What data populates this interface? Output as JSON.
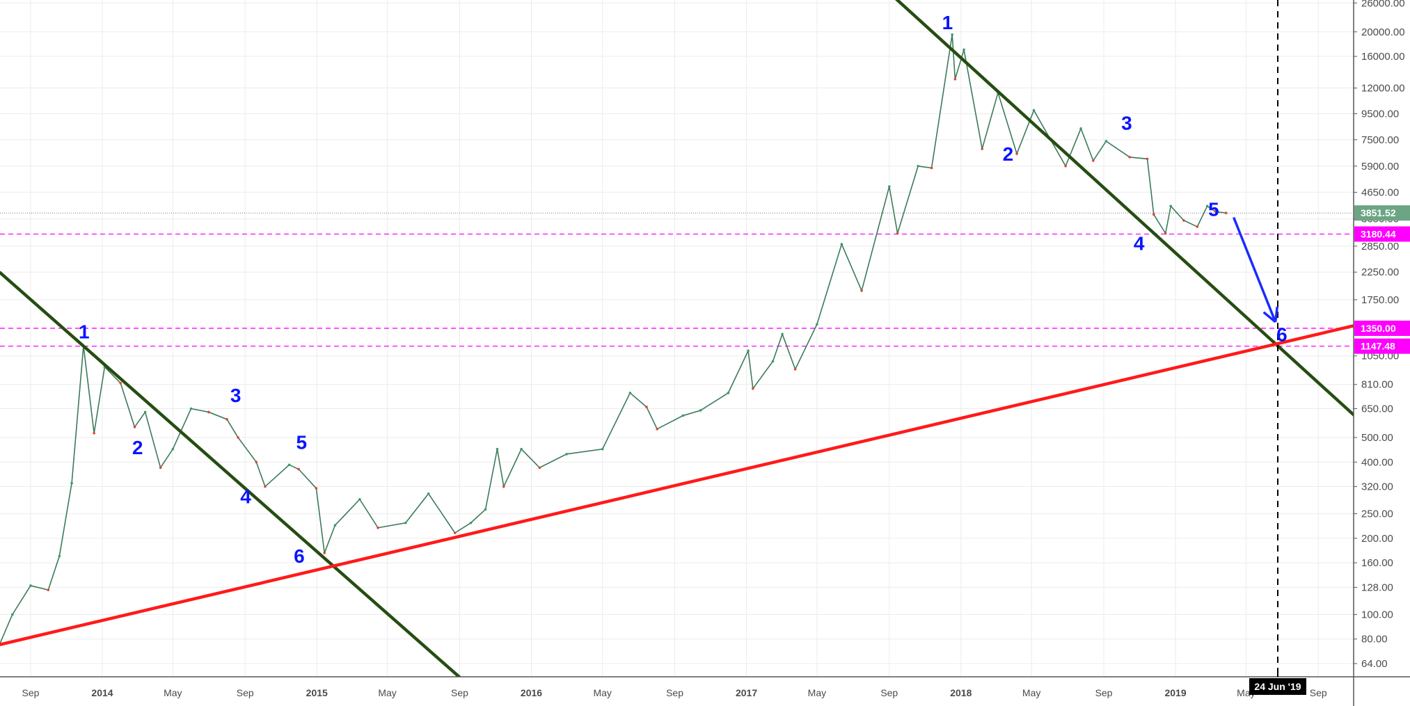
{
  "chart_data": {
    "type": "line",
    "title": "",
    "xlabel": "",
    "ylabel": "",
    "y_scale": "log",
    "ylim": [
      56,
      28000
    ],
    "xlim": [
      "2013-07-10",
      "2019-12-20"
    ],
    "grid": true,
    "y_ticks": [
      "26000.00",
      "20000.00",
      "16000.00",
      "12000.00",
      "9500.00",
      "7500.00",
      "5900.00",
      "4650.00",
      "3650.00",
      "2850.00",
      "2250.00",
      "1750.00",
      "1050.00",
      "810.00",
      "650.00",
      "500.00",
      "400.00",
      "320.00",
      "250.00",
      "200.00",
      "160.00",
      "128.00",
      "100.00",
      "80.00",
      "64.00"
    ],
    "x_ticks": [
      {
        "label": "Sep",
        "date": "2013-09-01",
        "year": false
      },
      {
        "label": "2014",
        "date": "2014-01-01",
        "year": true
      },
      {
        "label": "May",
        "date": "2014-05-01",
        "year": false
      },
      {
        "label": "Sep",
        "date": "2014-09-01",
        "year": false
      },
      {
        "label": "2015",
        "date": "2015-01-01",
        "year": true
      },
      {
        "label": "May",
        "date": "2015-05-01",
        "year": false
      },
      {
        "label": "Sep",
        "date": "2015-09-01",
        "year": false
      },
      {
        "label": "2016",
        "date": "2016-01-01",
        "year": true
      },
      {
        "label": "May",
        "date": "2016-05-01",
        "year": false
      },
      {
        "label": "Sep",
        "date": "2016-09-01",
        "year": false
      },
      {
        "label": "2017",
        "date": "2017-01-01",
        "year": true
      },
      {
        "label": "May",
        "date": "2017-05-01",
        "year": false
      },
      {
        "label": "Sep",
        "date": "2017-09-01",
        "year": false
      },
      {
        "label": "2018",
        "date": "2018-01-01",
        "year": true
      },
      {
        "label": "May",
        "date": "2018-05-01",
        "year": false
      },
      {
        "label": "Sep",
        "date": "2018-09-01",
        "year": false
      },
      {
        "label": "2019",
        "date": "2019-01-01",
        "year": true
      },
      {
        "label": "May",
        "date": "2019-05-01",
        "year": false
      },
      {
        "label": "Sep",
        "date": "2019-09-01",
        "year": false
      }
    ],
    "series": [
      {
        "points": [
          [
            "2013-07-10",
            76
          ],
          [
            "2013-08-01",
            100
          ],
          [
            "2013-09-01",
            130
          ],
          [
            "2013-10-01",
            125
          ],
          [
            "2013-10-20",
            170
          ],
          [
            "2013-11-10",
            330
          ],
          [
            "2013-11-30",
            1150
          ],
          [
            "2013-12-18",
            520
          ],
          [
            "2014-01-05",
            950
          ],
          [
            "2014-02-01",
            820
          ],
          [
            "2014-02-25",
            550
          ],
          [
            "2014-03-15",
            630
          ],
          [
            "2014-04-10",
            380
          ],
          [
            "2014-05-01",
            450
          ],
          [
            "2014-06-01",
            650
          ],
          [
            "2014-07-01",
            630
          ],
          [
            "2014-08-01",
            590
          ],
          [
            "2014-08-20",
            500
          ],
          [
            "2014-09-20",
            400
          ],
          [
            "2014-10-05",
            320
          ],
          [
            "2014-11-15",
            390
          ],
          [
            "2014-12-01",
            375
          ],
          [
            "2014-12-31",
            315
          ],
          [
            "2015-01-14",
            175
          ],
          [
            "2015-02-01",
            225
          ],
          [
            "2015-03-15",
            285
          ],
          [
            "2015-04-15",
            220
          ],
          [
            "2015-06-01",
            230
          ],
          [
            "2015-07-10",
            300
          ],
          [
            "2015-08-24",
            210
          ],
          [
            "2015-09-20",
            230
          ],
          [
            "2015-10-15",
            260
          ],
          [
            "2015-11-04",
            450
          ],
          [
            "2015-11-15",
            320
          ],
          [
            "2015-12-15",
            450
          ],
          [
            "2016-01-15",
            380
          ],
          [
            "2016-03-01",
            430
          ],
          [
            "2016-05-01",
            450
          ],
          [
            "2016-06-17",
            750
          ],
          [
            "2016-07-15",
            660
          ],
          [
            "2016-08-02",
            540
          ],
          [
            "2016-09-15",
            610
          ],
          [
            "2016-10-15",
            640
          ],
          [
            "2016-12-01",
            750
          ],
          [
            "2017-01-04",
            1100
          ],
          [
            "2017-01-12",
            780
          ],
          [
            "2017-02-15",
            1000
          ],
          [
            "2017-03-03",
            1280
          ],
          [
            "2017-03-25",
            930
          ],
          [
            "2017-05-01",
            1400
          ],
          [
            "2017-06-12",
            2900
          ],
          [
            "2017-07-16",
            1900
          ],
          [
            "2017-09-01",
            4900
          ],
          [
            "2017-09-15",
            3200
          ],
          [
            "2017-10-20",
            5900
          ],
          [
            "2017-11-12",
            5800
          ],
          [
            "2017-12-17",
            19500
          ],
          [
            "2017-12-22",
            13000
          ],
          [
            "2018-01-06",
            17000
          ],
          [
            "2018-02-06",
            6900
          ],
          [
            "2018-03-05",
            11500
          ],
          [
            "2018-04-06",
            6600
          ],
          [
            "2018-05-05",
            9800
          ],
          [
            "2018-06-28",
            5900
          ],
          [
            "2018-07-24",
            8300
          ],
          [
            "2018-08-14",
            6200
          ],
          [
            "2018-09-05",
            7400
          ],
          [
            "2018-10-15",
            6400
          ],
          [
            "2018-11-14",
            6300
          ],
          [
            "2018-11-25",
            3800
          ],
          [
            "2018-12-15",
            3200
          ],
          [
            "2018-12-24",
            4100
          ],
          [
            "2019-01-15",
            3600
          ],
          [
            "2019-02-07",
            3400
          ],
          [
            "2019-02-24",
            4100
          ],
          [
            "2019-03-10",
            3900
          ],
          [
            "2019-03-28",
            3851.52
          ]
        ]
      }
    ],
    "current_price": {
      "value": 3851.52,
      "label": "3851.52",
      "color": "#6ba583"
    },
    "horizontal_levels": [
      {
        "value": 3180.44,
        "label": "3180.44",
        "color": "#ff00ff"
      },
      {
        "value": 1350.0,
        "label": "1350.00",
        "color": "#ff00ff"
      },
      {
        "value": 1147.48,
        "label": "1147.48",
        "color": "#ff00ff"
      }
    ],
    "trendlines": [
      {
        "name": "",
        "color": "#264d12",
        "from": [
          "2013-07-10",
          2250
        ],
        "to": [
          "2015-09-03",
          56
        ]
      },
      {
        "name": "",
        "color": "#264d12",
        "from": [
          "2017-09-05",
          28000
        ],
        "to": [
          "2019-11-05",
          600
        ]
      },
      {
        "name": "",
        "color": "#ff1a1a",
        "from": [
          "2013-07-10",
          76
        ],
        "to": [
          "2019-11-05",
          1390
        ]
      }
    ],
    "arrow": {
      "color": "#1a2bff",
      "from": [
        "2019-04-10",
        3700
      ],
      "to": [
        "2019-06-20",
        1430
      ]
    },
    "vertical_marker": {
      "date": "2019-06-24",
      "label": "24 Jun '19"
    },
    "wave_labels": [
      {
        "text": "1",
        "date": "2013-12-01",
        "price": 1230
      },
      {
        "text": "2",
        "date": "2014-03-02",
        "price": 430
      },
      {
        "text": "3",
        "date": "2014-08-16",
        "price": 690
      },
      {
        "text": "4",
        "date": "2014-09-02",
        "price": 275
      },
      {
        "text": "5",
        "date": "2014-12-06",
        "price": 450
      },
      {
        "text": "6",
        "date": "2014-12-02",
        "price": 160
      },
      {
        "text": "1",
        "date": "2017-12-09",
        "price": 20500
      },
      {
        "text": "2",
        "date": "2018-03-22",
        "price": 6200
      },
      {
        "text": "3",
        "date": "2018-10-10",
        "price": 8200
      },
      {
        "text": "4",
        "date": "2018-10-31",
        "price": 2750
      },
      {
        "text": "5",
        "date": "2019-03-07",
        "price": 3750
      },
      {
        "text": "6",
        "date": "2019-07-01",
        "price": 1200
      }
    ]
  }
}
